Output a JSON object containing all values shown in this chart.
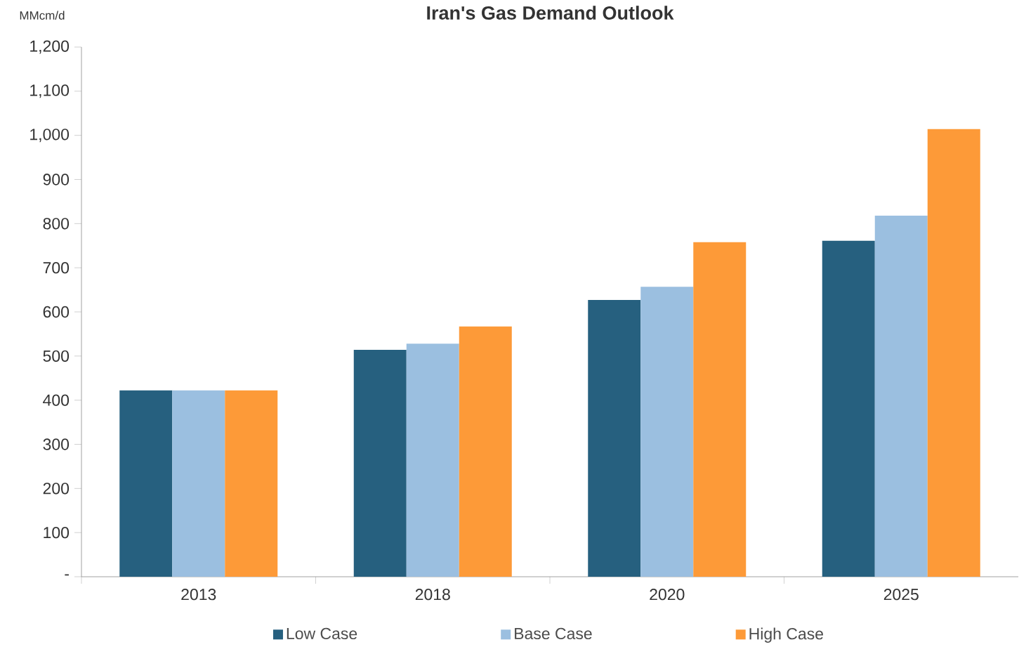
{
  "chart_data": {
    "type": "bar",
    "title": "Iran's Gas Demand Outlook",
    "ylabel": "MMcm/d",
    "categories": [
      "2013",
      "2018",
      "2020",
      "2025"
    ],
    "series": [
      {
        "name": "Low Case",
        "color": "#26607f",
        "values": [
          422,
          514,
          627,
          761
        ]
      },
      {
        "name": "Base Case",
        "color": "#9bbfe0",
        "values": [
          422,
          528,
          657,
          818
        ]
      },
      {
        "name": "High Case",
        "color": "#fd9a38",
        "values": [
          422,
          567,
          758,
          1014
        ]
      }
    ],
    "ylim": [
      0,
      1200
    ],
    "yticks": [
      {
        "value": 0,
        "label": "-"
      },
      100,
      200,
      300,
      400,
      500,
      600,
      700,
      800,
      900,
      {
        "value": 1000,
        "label": "1,000"
      },
      {
        "value": 1100,
        "label": "1,100"
      },
      {
        "value": 1200,
        "label": "1,200"
      }
    ],
    "grid": false,
    "legend": "bottom"
  }
}
